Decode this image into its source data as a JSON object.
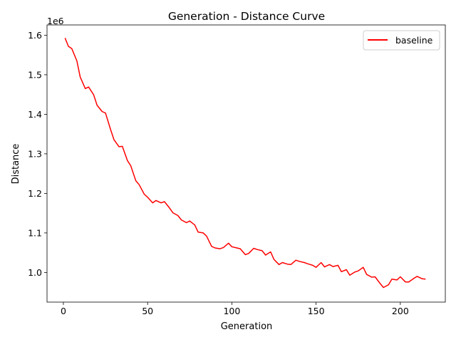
{
  "chart_data": {
    "type": "line",
    "title": "Generation - Distance Curve",
    "xlabel": "Generation",
    "ylabel": "Distance",
    "y_offset_text": "1e6",
    "xlim": [
      -9.7,
      226.7
    ],
    "ylim": [
      925000,
      1626000
    ],
    "x_ticks": [
      0,
      50,
      100,
      150,
      200
    ],
    "x_tick_labels": [
      "0",
      "50",
      "100",
      "150",
      "200"
    ],
    "y_ticks": [
      1000000,
      1100000,
      1200000,
      1300000,
      1400000,
      1500000,
      1600000
    ],
    "y_tick_labels": [
      "1.0",
      "1.1",
      "1.2",
      "1.3",
      "1.4",
      "1.5",
      "1.6"
    ],
    "grid": false,
    "legend_position": "top-right",
    "series": [
      {
        "name": "baseline",
        "color": "#ff0000",
        "x": [
          1,
          3,
          5,
          8,
          10,
          13,
          15,
          18,
          20,
          23,
          25,
          28,
          30,
          33,
          35,
          38,
          40,
          43,
          45,
          48,
          50,
          53,
          55,
          58,
          60,
          63,
          65,
          68,
          70,
          73,
          75,
          78,
          80,
          83,
          85,
          88,
          90,
          93,
          95,
          98,
          100,
          103,
          105,
          108,
          110,
          113,
          115,
          118,
          120,
          123,
          125,
          128,
          130,
          133,
          135,
          138,
          140,
          143,
          145,
          148,
          150,
          153,
          155,
          158,
          160,
          163,
          165,
          168,
          170,
          173,
          175,
          178,
          180,
          183,
          185,
          188,
          190,
          193,
          195,
          198,
          200,
          203,
          205,
          208,
          210,
          213,
          215
        ],
        "y": [
          1593000,
          1572000,
          1566000,
          1535000,
          1494000,
          1465000,
          1469000,
          1449000,
          1423000,
          1407000,
          1403000,
          1362000,
          1336000,
          1318000,
          1319000,
          1283000,
          1270000,
          1232000,
          1222000,
          1198000,
          1190000,
          1176000,
          1182000,
          1176000,
          1179000,
          1163000,
          1151000,
          1144000,
          1133000,
          1126000,
          1130000,
          1120000,
          1102000,
          1100000,
          1092000,
          1066000,
          1062000,
          1060000,
          1063000,
          1074000,
          1065000,
          1062000,
          1060000,
          1045000,
          1048000,
          1061000,
          1058000,
          1055000,
          1044000,
          1052000,
          1033000,
          1020000,
          1025000,
          1021000,
          1020000,
          1031000,
          1028000,
          1025000,
          1022000,
          1018000,
          1013000,
          1025000,
          1014000,
          1020000,
          1015000,
          1018000,
          1002000,
          1007000,
          993000,
          1001000,
          1004000,
          1013000,
          995000,
          988000,
          989000,
          972000,
          962000,
          969000,
          983000,
          981000,
          989000,
          976000,
          976000,
          985000,
          990000,
          984000,
          983000
        ]
      }
    ]
  }
}
